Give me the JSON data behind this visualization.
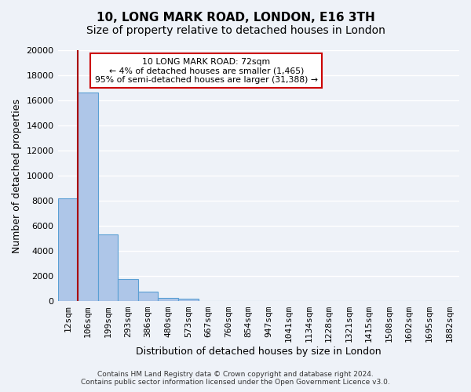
{
  "title": "10, LONG MARK ROAD, LONDON, E16 3TH",
  "subtitle": "Size of property relative to detached houses in London",
  "bar_values": [
    8200,
    16600,
    5300,
    1800,
    800,
    300,
    200,
    0,
    0,
    0,
    0,
    0,
    0,
    0,
    0,
    0,
    0,
    0,
    0,
    0
  ],
  "bar_labels": [
    "12sqm",
    "106sqm",
    "199sqm",
    "293sqm",
    "386sqm",
    "480sqm",
    "573sqm",
    "667sqm",
    "760sqm",
    "854sqm",
    "947sqm",
    "1041sqm",
    "1134sqm",
    "1228sqm",
    "1321sqm",
    "1415sqm",
    "1508sqm",
    "1602sqm",
    "1695sqm",
    "1882sqm"
  ],
  "ylim": [
    0,
    20000
  ],
  "yticks": [
    0,
    2000,
    4000,
    6000,
    8000,
    10000,
    12000,
    14000,
    16000,
    18000,
    20000
  ],
  "ylabel": "Number of detached properties",
  "xlabel": "Distribution of detached houses by size in London",
  "bar_color": "#aec6e8",
  "bar_edge_color": "#5a9fd4",
  "vline_x": 0.5,
  "annotation_title": "10 LONG MARK ROAD: 72sqm",
  "annotation_line1": "← 4% of detached houses are smaller (1,465)",
  "annotation_line2": "95% of semi-detached houses are larger (31,388) →",
  "annot_box_color": "#ffffff",
  "annot_box_edge": "#cc0000",
  "vline_color": "#aa0000",
  "footer1": "Contains HM Land Registry data © Crown copyright and database right 2024.",
  "footer2": "Contains public sector information licensed under the Open Government Licence v3.0.",
  "bg_color": "#eef2f8",
  "plot_bg_color": "#eef2f8",
  "grid_color": "#ffffff",
  "title_fontsize": 11,
  "subtitle_fontsize": 10,
  "axis_label_fontsize": 9,
  "tick_fontsize": 8
}
